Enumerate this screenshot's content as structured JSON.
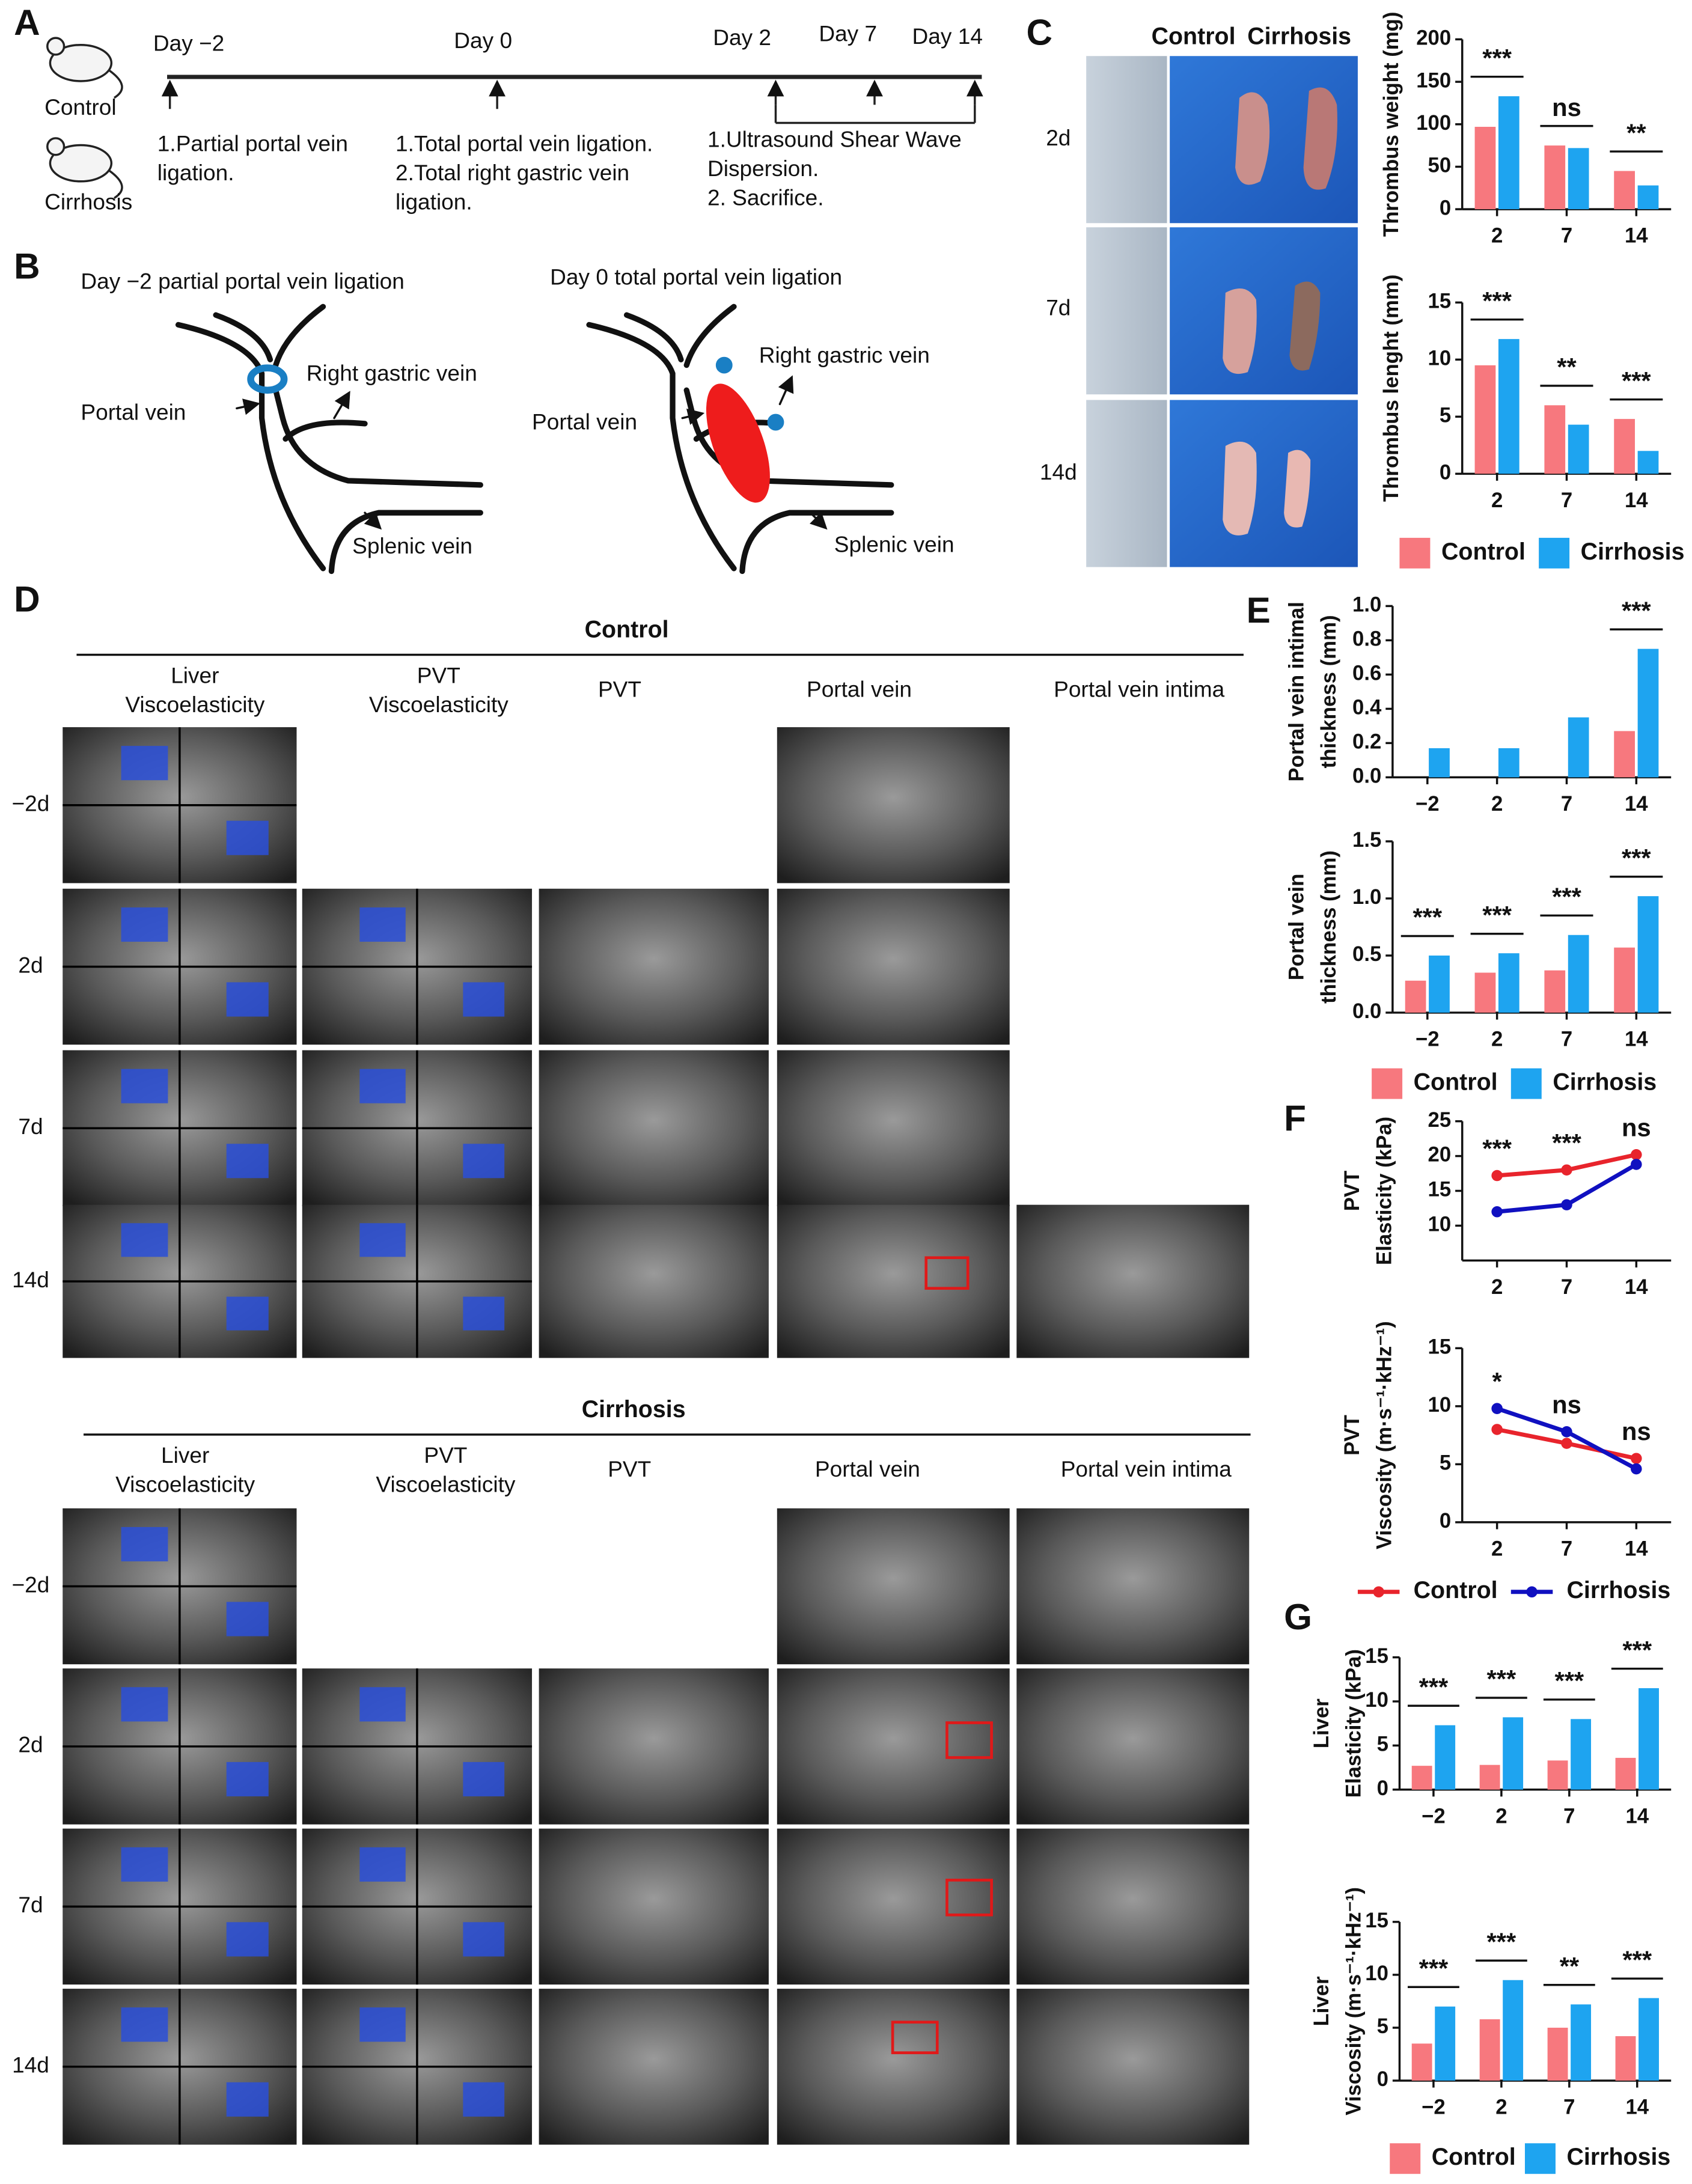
{
  "panel_labels": [
    "A",
    "B",
    "C",
    "D",
    "E",
    "F",
    "G"
  ],
  "panel_a": {
    "groups": [
      "Control",
      "Cirrhosis"
    ],
    "days": [
      "Day −2",
      "Day 0",
      "Day 2",
      "Day 7",
      "Day 14"
    ],
    "steps": [
      [
        "1.Partial portal vein",
        "ligation."
      ],
      [
        "1.Total portal vein ligation.",
        "2.Total right gastric vein",
        "ligation."
      ],
      [
        "1.Ultrasound Shear Wave",
        " Dispersion.",
        "2. Sacrifice."
      ]
    ]
  },
  "panel_b": {
    "left": {
      "title": "Day −2 partial portal vein ligation",
      "labels": [
        "Right gastric vein",
        "Portal vein",
        "Splenic vein"
      ]
    },
    "right": {
      "title": "Day 0 total portal vein ligation",
      "labels": [
        "Right gastric vein",
        "Portal vein",
        "Splenic vein"
      ]
    }
  },
  "panel_c": {
    "columns": [
      "Control",
      "Cirrhosis"
    ],
    "rows": [
      "2d",
      "7d",
      "14d"
    ]
  },
  "panel_d": {
    "sections": [
      {
        "title": "Control",
        "columns": [
          [
            "Liver",
            "Viscoelasticity"
          ],
          [
            "PVT",
            "Viscoelasticity"
          ],
          [
            "PVT"
          ],
          [
            "Portal vein"
          ],
          [
            "Portal vein intima"
          ]
        ],
        "rows": [
          "−2d",
          "2d",
          "7d",
          "14d"
        ]
      },
      {
        "title": "Cirrhosis",
        "columns": [
          [
            "Liver",
            "Viscoelasticity"
          ],
          [
            "PVT",
            "Viscoelasticity"
          ],
          [
            "PVT"
          ],
          [
            "Portal vein"
          ],
          [
            "Portal vein intima"
          ]
        ],
        "rows": [
          "−2d",
          "2d",
          "7d",
          "14d"
        ]
      }
    ]
  },
  "chart_data": [
    {
      "type": "bar",
      "ylabel": [
        "Thrombus weight (mg)"
      ],
      "categories": [
        "2",
        "7",
        "14"
      ],
      "series": [
        {
          "name": "Control",
          "color": "#f7787e",
          "values": [
            97,
            75,
            45
          ]
        },
        {
          "name": "Cirrhosis",
          "color": "#1ea4f0",
          "values": [
            133,
            72,
            28
          ]
        }
      ],
      "ylim": [
        0,
        200
      ],
      "yticks": [
        0,
        50,
        100,
        150,
        200
      ],
      "significance": [
        "***",
        "ns",
        "**"
      ]
    },
    {
      "type": "bar",
      "ylabel": [
        "Thrombus lenght (mm)"
      ],
      "categories": [
        "2",
        "7",
        "14"
      ],
      "series": [
        {
          "name": "Control",
          "color": "#f7787e",
          "values": [
            9.5,
            6,
            4.8
          ]
        },
        {
          "name": "Cirrhosis",
          "color": "#1ea4f0",
          "values": [
            11.8,
            4.3,
            2
          ]
        }
      ],
      "ylim": [
        0,
        15
      ],
      "yticks": [
        0,
        5,
        10,
        15
      ],
      "significance": [
        "***",
        "**",
        "***"
      ],
      "legend": "bottom"
    },
    {
      "type": "bar",
      "ylabel": [
        "Portal vein  intimal",
        "thickness (mm)"
      ],
      "categories": [
        "−2",
        "2",
        "7",
        "14"
      ],
      "series": [
        {
          "name": "Control",
          "color": "#f7787e",
          "values": [
            null,
            null,
            null,
            0.27
          ]
        },
        {
          "name": "Cirrhosis",
          "color": "#1ea4f0",
          "values": [
            0.17,
            0.17,
            0.35,
            0.75
          ]
        }
      ],
      "ylim": [
        0,
        1
      ],
      "yticks": [
        {
          "value": 0,
          "label": "0.0"
        },
        0.2,
        0.4,
        0.6,
        0.8,
        {
          "value": 1,
          "label": "1.0"
        }
      ],
      "significance": [
        null,
        null,
        null,
        "***"
      ]
    },
    {
      "type": "bar",
      "ylabel": [
        "Portal vein",
        "thickness (mm)"
      ],
      "categories": [
        "−2",
        "2",
        "7",
        "14"
      ],
      "series": [
        {
          "name": "Control",
          "color": "#f7787e",
          "values": [
            0.28,
            0.35,
            0.37,
            0.57
          ]
        },
        {
          "name": "Cirrhosis",
          "color": "#1ea4f0",
          "values": [
            0.5,
            0.52,
            0.68,
            1.02
          ]
        }
      ],
      "ylim": [
        0,
        1.5
      ],
      "yticks": [
        {
          "value": 0,
          "label": "0.0"
        },
        0.5,
        {
          "value": 1,
          "label": "1.0"
        },
        1.5
      ],
      "significance": [
        "***",
        "***",
        "***",
        "***"
      ],
      "legend": "bottom"
    },
    {
      "type": "line",
      "ylabel": [
        "PVT",
        "Elasticity (kPa)"
      ],
      "categories": [
        "2",
        "7",
        "14"
      ],
      "series": [
        {
          "name": "Control",
          "color": "#e8242c",
          "values": [
            17.2,
            18,
            20.2
          ]
        },
        {
          "name": "Cirrhosis",
          "color": "#1010c0",
          "values": [
            12,
            13,
            18.8
          ]
        }
      ],
      "ylim": [
        5,
        25
      ],
      "yticks": [
        10,
        15,
        20,
        25
      ],
      "significance": [
        "***",
        "***",
        "ns"
      ]
    },
    {
      "type": "line",
      "ylabel": [
        "PVT",
        "Viscosity (m·s⁻¹·kHz⁻¹)"
      ],
      "categories": [
        "2",
        "7",
        "14"
      ],
      "series": [
        {
          "name": "Control",
          "color": "#e8242c",
          "values": [
            8,
            6.8,
            5.5
          ]
        },
        {
          "name": "Cirrhosis",
          "color": "#1010c0",
          "values": [
            9.8,
            7.8,
            4.6
          ]
        }
      ],
      "ylim": [
        0,
        15
      ],
      "yticks": [
        0,
        5,
        10,
        15
      ],
      "significance": [
        "*",
        "ns",
        "ns"
      ],
      "legend": "bottom"
    },
    {
      "type": "bar",
      "ylabel": [
        "Liver",
        "Elasticity (kPa)"
      ],
      "categories": [
        "−2",
        "2",
        "7",
        "14"
      ],
      "series": [
        {
          "name": "Control",
          "color": "#f7787e",
          "values": [
            2.7,
            2.8,
            3.3,
            3.6
          ]
        },
        {
          "name": "Cirrhosis",
          "color": "#1ea4f0",
          "values": [
            7.3,
            8.2,
            8,
            11.5
          ]
        }
      ],
      "ylim": [
        0,
        15
      ],
      "yticks": [
        0,
        5,
        10,
        15
      ],
      "significance": [
        "***",
        "***",
        "***",
        "***"
      ]
    },
    {
      "type": "bar",
      "ylabel": [
        "Liver",
        "Viscosity (m·s⁻¹·kHz⁻¹)"
      ],
      "categories": [
        "−2",
        "2",
        "7",
        "14"
      ],
      "series": [
        {
          "name": "Control",
          "color": "#f7787e",
          "values": [
            3.5,
            5.8,
            5,
            4.2
          ]
        },
        {
          "name": "Cirrhosis",
          "color": "#1ea4f0",
          "values": [
            7,
            9.5,
            7.2,
            7.8
          ]
        }
      ],
      "ylim": [
        0,
        15
      ],
      "yticks": [
        0,
        5,
        10,
        15
      ],
      "significance": [
        "***",
        "***",
        "**",
        "***"
      ],
      "legend": "bottom"
    }
  ]
}
